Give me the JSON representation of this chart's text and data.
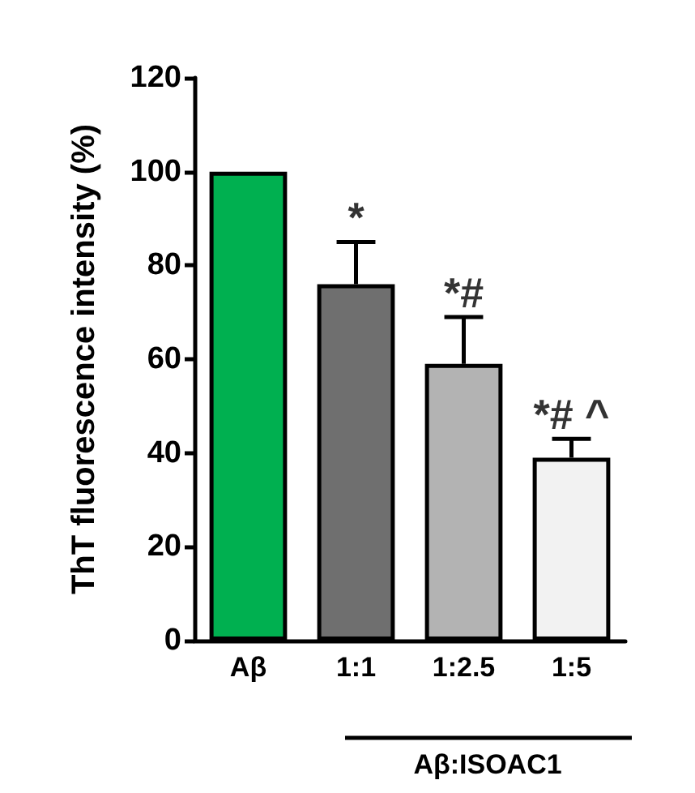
{
  "chart_data": {
    "type": "bar",
    "ylabel": "ThT fluorescence intensity (%)",
    "categories": [
      "Aβ",
      "1:1",
      "1:2.5",
      "1:5"
    ],
    "values": [
      100,
      76,
      59,
      39
    ],
    "colors": [
      "#00b050",
      "#6f6f6f",
      "#b3b3b3",
      "#f2f2f2"
    ],
    "errors": [
      null,
      [
        76,
        85
      ],
      [
        59,
        69
      ],
      [
        39,
        43
      ]
    ],
    "ylim": [
      0,
      120
    ],
    "yticks": [
      0,
      20,
      40,
      60,
      80,
      100,
      120
    ],
    "grid": false,
    "annotations": [
      {
        "text": "*",
        "x": "1:1",
        "y": 85
      },
      {
        "text": "*#",
        "x": "1:2.5",
        "y": 69
      },
      {
        "text": "*# ^",
        "x": "1:5",
        "y": 43
      },
      "Aβ:ISOAC1"
    ]
  }
}
